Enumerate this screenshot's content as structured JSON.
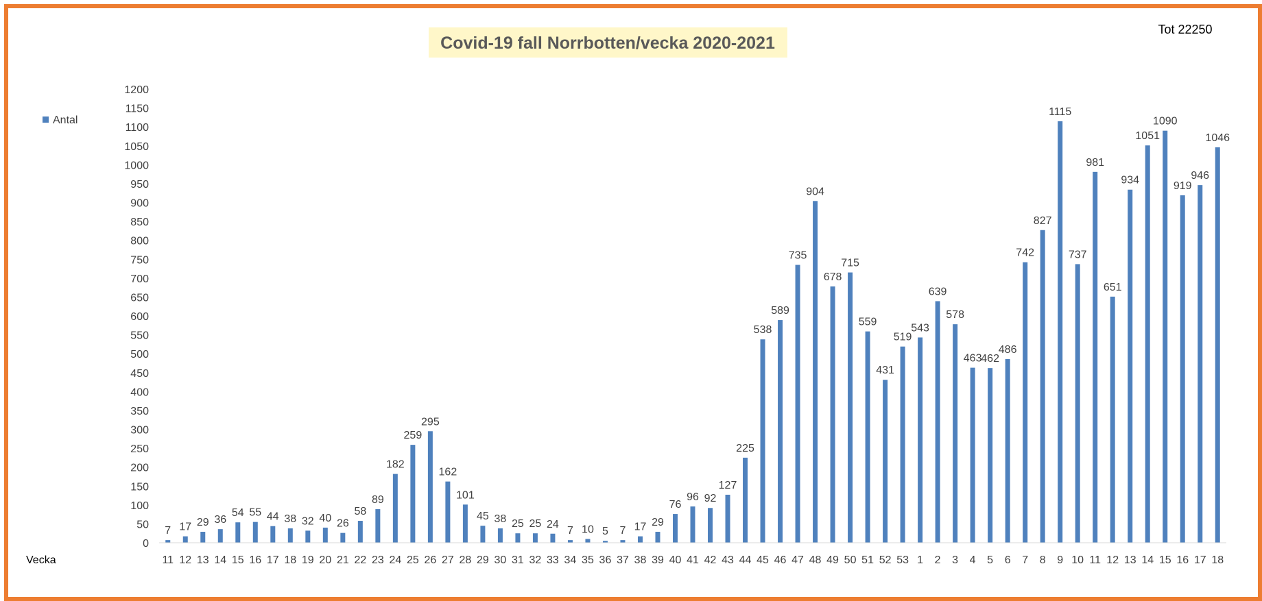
{
  "chart_data": {
    "type": "bar",
    "title": "Covid-19 fall Norrbotten/vecka 2020-2021",
    "total_label": "Tot 22250",
    "xlabel": "Vecka",
    "ylabel": "",
    "ylim": [
      0,
      1200
    ],
    "ytick_step": 50,
    "grid": false,
    "legend_position": "left",
    "bar_color": "#4F81BD",
    "series": [
      {
        "name": "Antal",
        "values": [
          7,
          17,
          29,
          36,
          54,
          55,
          44,
          38,
          32,
          40,
          26,
          58,
          89,
          182,
          259,
          295,
          162,
          101,
          45,
          38,
          25,
          25,
          24,
          7,
          10,
          5,
          7,
          17,
          29,
          76,
          96,
          92,
          127,
          225,
          538,
          589,
          735,
          904,
          678,
          715,
          559,
          431,
          519,
          543,
          639,
          578,
          463,
          462,
          486,
          742,
          827,
          1115,
          737,
          981,
          651,
          934,
          1051,
          1090,
          919,
          946,
          1046
        ]
      }
    ],
    "categories": [
      "11",
      "12",
      "13",
      "14",
      "15",
      "16",
      "17",
      "18",
      "19",
      "20",
      "21",
      "22",
      "23",
      "24",
      "25",
      "26",
      "27",
      "28",
      "29",
      "30",
      "31",
      "32",
      "33",
      "34",
      "35",
      "36",
      "37",
      "38",
      "39",
      "40",
      "41",
      "42",
      "43",
      "44",
      "45",
      "46",
      "47",
      "48",
      "49",
      "50",
      "51",
      "52",
      "53",
      "1",
      "2",
      "3",
      "4",
      "5",
      "6",
      "7",
      "8",
      "9",
      "10",
      "11",
      "12",
      "13",
      "14",
      "15",
      "16",
      "17",
      "18"
    ]
  }
}
